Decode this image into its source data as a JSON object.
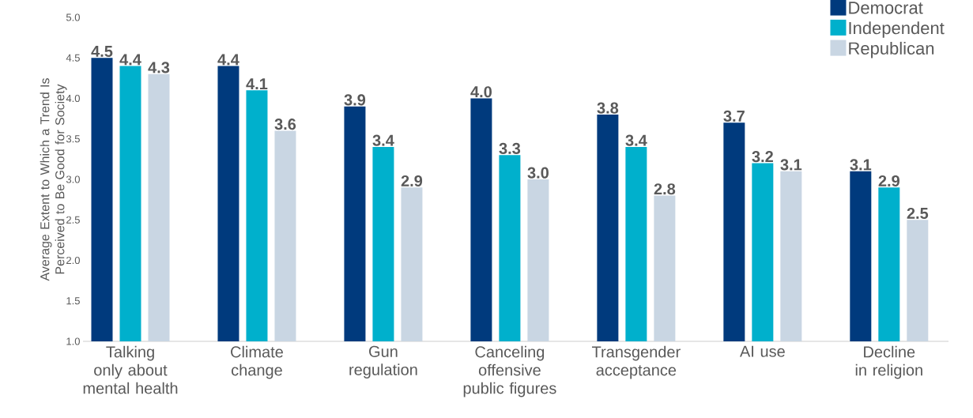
{
  "chart_data": {
    "type": "bar",
    "ylabel": "Average Extent to Which a Trend Is Perceived to Be Good for Society",
    "categories": [
      "Talking only about mental health",
      "Climate change",
      "Gun regulation",
      "Canceling offensive public figures",
      "Transgender acceptance",
      "AI use",
      "Decline in religion"
    ],
    "series": [
      {
        "name": "Democrat",
        "color": "#003a7d",
        "values": [
          4.5,
          4.4,
          3.9,
          4.0,
          3.8,
          3.7,
          3.1
        ],
        "value_labels": [
          "4.5",
          "4.4",
          "3.9",
          "4.0",
          "3.8",
          "3.7",
          "3.1"
        ]
      },
      {
        "name": "Independent",
        "color": "#00b0cc",
        "values": [
          4.4,
          4.1,
          3.4,
          3.3,
          3.4,
          3.2,
          2.9
        ],
        "value_labels": [
          "4.4",
          "4.1",
          "3.4",
          "3.3",
          "3.4",
          "3.2",
          "2.9"
        ]
      },
      {
        "name": "Republican",
        "color": "#c9d6e3",
        "values": [
          4.3,
          3.6,
          2.9,
          3.0,
          2.8,
          3.1,
          2.5
        ],
        "value_labels": [
          "4.3",
          "3.6",
          "2.9",
          "3.0",
          "2.8",
          "3.1",
          "2.5"
        ]
      }
    ],
    "ylim": [
      1.0,
      5.0
    ],
    "yticks": [
      {
        "value": 1.0,
        "label": "1.0"
      },
      {
        "value": 1.5,
        "label": "1.5"
      },
      {
        "value": 2.0,
        "label": "2.0"
      },
      {
        "value": 2.5,
        "label": "2.5"
      },
      {
        "value": 3.0,
        "label": "3.0"
      },
      {
        "value": 3.5,
        "label": "3.5"
      },
      {
        "value": 4.0,
        "label": "4.0"
      },
      {
        "value": 4.5,
        "label": "4.5"
      },
      {
        "value": 5.0,
        "label": "5.0"
      }
    ],
    "legend": "top right"
  }
}
